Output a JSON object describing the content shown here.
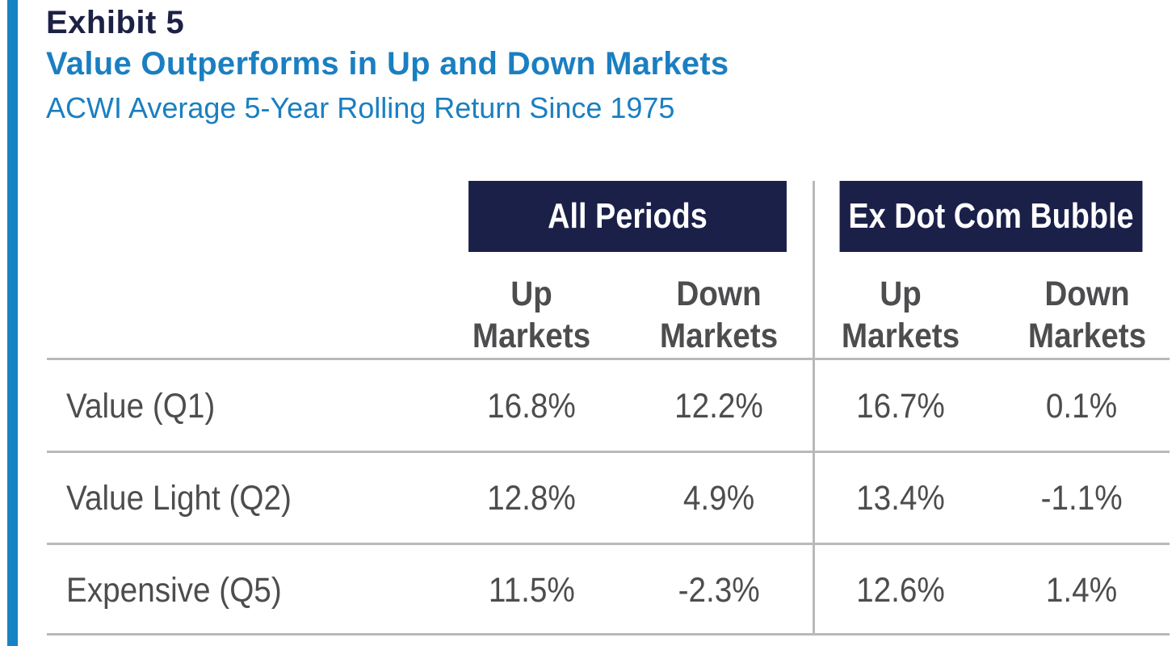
{
  "exhibit_label": "Exhibit 5",
  "title": "Value Outperforms in Up and Down Markets",
  "subtitle": "ACWI Average 5-Year Rolling Return Since 1975",
  "colors": {
    "accent_bar": "#1583c4",
    "title_blue": "#1a7fc1",
    "subtitle_blue": "#1a7fc1",
    "exhibit_navy": "#1c2145",
    "header_navy": "#1b2049",
    "text_gray": "#4d4d4f",
    "rule_gray": "#b9b9b9"
  },
  "chart_data": {
    "type": "table",
    "title": "Value Outperforms in Up and Down Markets",
    "subtitle": "ACWI Average 5-Year Rolling Return Since 1975",
    "groups": [
      {
        "label": "All Periods",
        "columns": [
          {
            "line1": "Up",
            "line2": "Markets"
          },
          {
            "line1": "Down",
            "line2": "Markets"
          }
        ]
      },
      {
        "label": "Ex Dot Com Bubble",
        "columns": [
          {
            "line1": "Up",
            "line2": "Markets"
          },
          {
            "line1": "Down",
            "line2": "Markets"
          }
        ]
      }
    ],
    "rows": [
      {
        "label": "Value (Q1)",
        "cells": [
          "16.8%",
          "12.2%",
          "16.7%",
          "0.1%"
        ]
      },
      {
        "label": "Value Light (Q2)",
        "cells": [
          "12.8%",
          "4.9%",
          "13.4%",
          "-1.1%"
        ]
      },
      {
        "label": "Expensive (Q5)",
        "cells": [
          "11.5%",
          "-2.3%",
          "12.6%",
          "1.4%"
        ]
      }
    ],
    "values": [
      [
        16.8,
        12.2,
        16.7,
        0.1
      ],
      [
        12.8,
        4.9,
        13.4,
        -1.1
      ],
      [
        11.5,
        -2.3,
        12.6,
        1.4
      ]
    ]
  }
}
